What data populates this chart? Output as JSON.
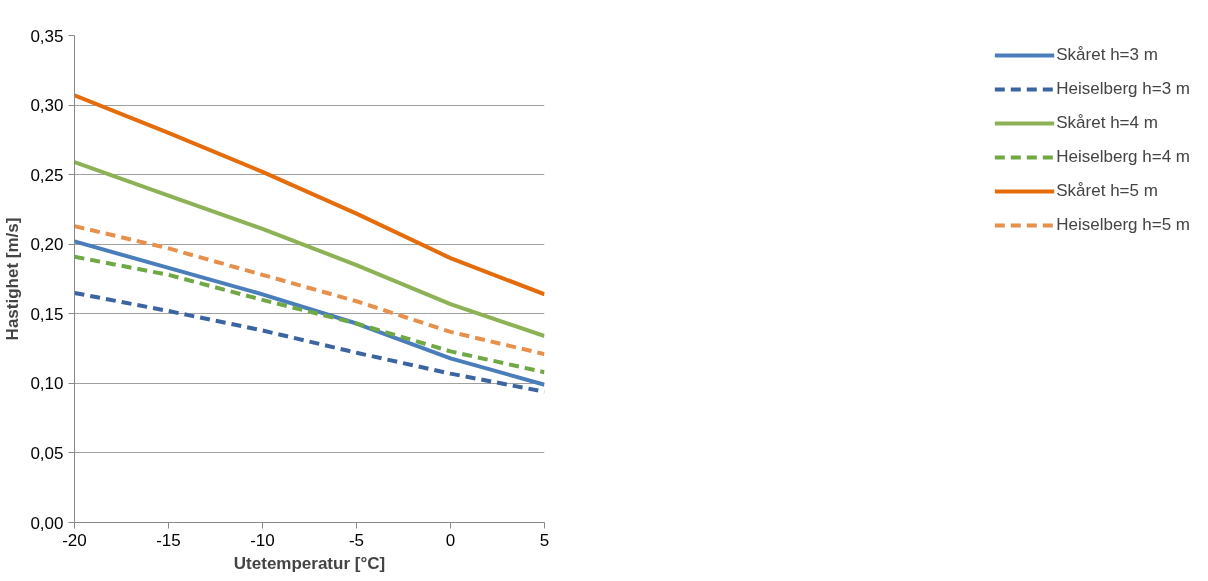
{
  "chart_data": {
    "type": "line",
    "xlabel": "Utetemperatur [°C]",
    "ylabel": "Hastighet [m/s]",
    "x": [
      -20,
      -15,
      -10,
      -5,
      0,
      5
    ],
    "series": [
      {
        "name": "Skåret h=3 m",
        "color": "#4a7ebb",
        "line_style": "solid",
        "values": [
          0.202,
          0.183,
          0.164,
          0.143,
          0.118,
          0.099
        ]
      },
      {
        "name": "Heiselberg h=3 m",
        "color": "#3b64a0",
        "line_style": "dashed",
        "values": [
          0.165,
          0.152,
          0.138,
          0.122,
          0.107,
          0.094
        ]
      },
      {
        "name": "Skåret h=4 m",
        "color": "#8db255",
        "line_style": "solid",
        "values": [
          0.259,
          0.235,
          0.211,
          0.185,
          0.157,
          0.134
        ]
      },
      {
        "name": "Heiselberg h=4 m",
        "color": "#6fa844",
        "line_style": "dashed",
        "values": [
          0.191,
          0.178,
          0.16,
          0.143,
          0.123,
          0.108
        ]
      },
      {
        "name": "Skåret h=5 m",
        "color": "#e46c0a",
        "line_style": "solid",
        "values": [
          0.307,
          0.28,
          0.252,
          0.222,
          0.19,
          0.164
        ]
      },
      {
        "name": "Heiselberg h=5 m",
        "color": "#e6904c",
        "line_style": "dashed",
        "values": [
          0.213,
          0.197,
          0.178,
          0.159,
          0.137,
          0.121
        ]
      }
    ],
    "xlim": [
      -20,
      5
    ],
    "xticks": [
      -20,
      -15,
      -10,
      -5,
      0,
      5
    ],
    "ylim": [
      0,
      0.35
    ],
    "yticks": [
      {
        "value": 0,
        "label": "0,00"
      },
      {
        "value": 0.05,
        "label": "0,05"
      },
      {
        "value": 0.1,
        "label": "0,10"
      },
      {
        "value": 0.15,
        "label": "0,15"
      },
      {
        "value": 0.2,
        "label": "0,20"
      },
      {
        "value": 0.25,
        "label": "0,25"
      },
      {
        "value": 0.3,
        "label": "0,30"
      },
      {
        "value": 0.35,
        "label": "0,35"
      }
    ],
    "grid": "y",
    "legend": "right",
    "marker": "none"
  }
}
